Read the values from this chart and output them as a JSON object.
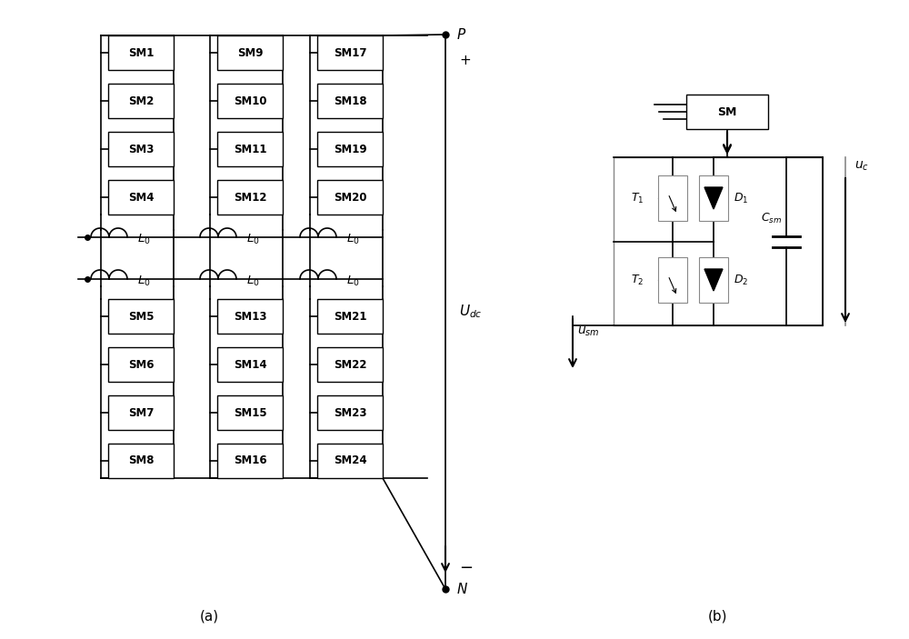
{
  "bg_color": "#ffffff",
  "line_color": "#000000",
  "box_color": "#000000",
  "fig_width": 10.0,
  "fig_height": 7.03,
  "label_a": "(a)",
  "label_b": "(b)",
  "sm_labels_upper_col1": [
    "SM1",
    "SM2",
    "SM3",
    "SM4"
  ],
  "sm_labels_upper_col2": [
    "SM9",
    "SM10",
    "SM11",
    "SM12"
  ],
  "sm_labels_upper_col3": [
    "SM17",
    "SM18",
    "SM19",
    "SM20"
  ],
  "sm_labels_lower_col1": [
    "SM5",
    "SM6",
    "SM7",
    "SM8"
  ],
  "sm_labels_lower_col2": [
    "SM13",
    "SM14",
    "SM15",
    "SM16"
  ],
  "sm_labels_lower_col3": [
    "SM21",
    "SM22",
    "SM23",
    "SM24"
  ]
}
